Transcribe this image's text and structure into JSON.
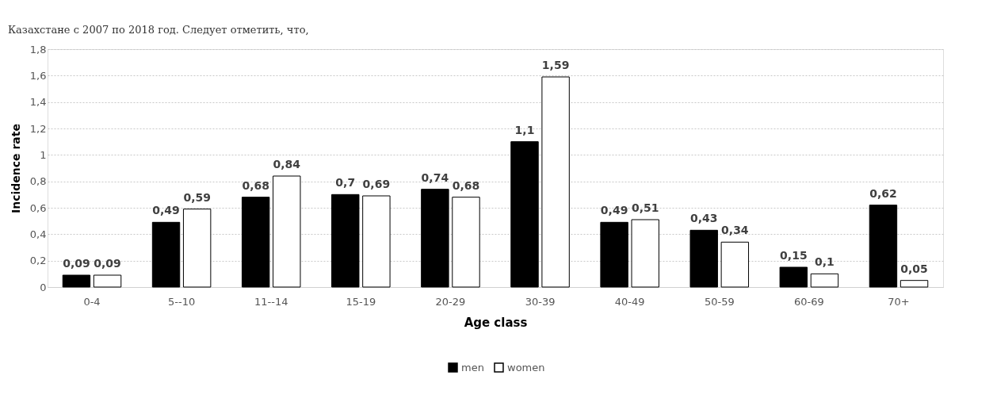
{
  "chart_data": {
    "type": "bar",
    "xlabel": "Age class",
    "ylabel": "Incidence rate",
    "annotations": [
      "Казахстане с 2007 по 2018 год. Следует отметить, что,"
    ],
    "categories": [
      "0-4",
      "5--10",
      "11--14",
      "15-19",
      "20-29",
      "30-39",
      "40-49",
      "50-59",
      "60-69",
      "70+"
    ],
    "series": [
      {
        "name": "men",
        "color": "#000000",
        "values": [
          0.09,
          0.49,
          0.68,
          0.7,
          0.74,
          1.1,
          0.49,
          0.43,
          0.15,
          0.62
        ],
        "value_labels": [
          "0,09",
          "0,49",
          "0,68",
          "0,7",
          "0,74",
          "1,1",
          "0,49",
          "0,43",
          "0,15",
          "0,62"
        ]
      },
      {
        "name": "women",
        "color": "#ffffff",
        "values": [
          0.09,
          0.59,
          0.84,
          0.69,
          0.68,
          1.59,
          0.51,
          0.34,
          0.1,
          0.05
        ],
        "value_labels": [
          "0,09",
          "0,59",
          "0,84",
          "0,69",
          "0,68",
          "1,59",
          "0,51",
          "0,34",
          "0,1",
          "0,05"
        ]
      }
    ],
    "ylim": [
      0,
      1.8
    ],
    "yticks": [
      0,
      {
        "value": 0.2,
        "label": "0,2"
      },
      {
        "value": 0.4,
        "label": "0,4"
      },
      {
        "value": 0.6,
        "label": "0,6"
      },
      {
        "value": 0.8,
        "label": "0,8"
      },
      1,
      {
        "value": 1.2,
        "label": "1,2"
      },
      {
        "value": 1.4,
        "label": "1,4"
      },
      {
        "value": 1.6,
        "label": "1,6"
      },
      {
        "value": 1.8,
        "label": "1,8"
      }
    ],
    "grid": "y",
    "legend": "bottom"
  }
}
